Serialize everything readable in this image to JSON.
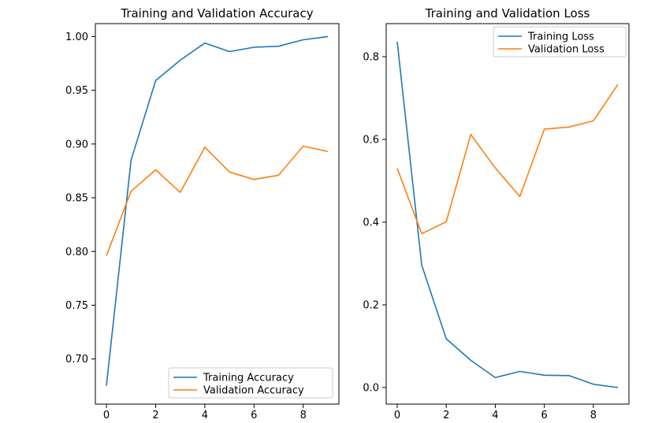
{
  "chart_data": [
    {
      "type": "line",
      "title": "Training and Validation Accuracy",
      "xlabel": "",
      "ylabel": "",
      "x": [
        0,
        1,
        2,
        3,
        4,
        5,
        6,
        7,
        8,
        9
      ],
      "xticks": [
        0,
        2,
        4,
        6,
        8
      ],
      "xlim": [
        -0.45,
        9.45
      ],
      "ylim": [
        0.658,
        1.012
      ],
      "yticks": [
        0.7,
        0.75,
        0.8,
        0.85,
        0.9,
        0.95,
        1.0
      ],
      "ytick_labels": [
        "0.70",
        "0.75",
        "0.80",
        "0.85",
        "0.90",
        "0.95",
        "1.00"
      ],
      "grid": false,
      "legend_position": "lower-right",
      "series": [
        {
          "name": "Training Accuracy",
          "color": "#1f77b4",
          "values": [
            0.675,
            0.885,
            0.959,
            0.978,
            0.994,
            0.986,
            0.99,
            0.991,
            0.997,
            1.0
          ]
        },
        {
          "name": "Validation Accuracy",
          "color": "#ff7f0e",
          "values": [
            0.796,
            0.856,
            0.876,
            0.855,
            0.897,
            0.874,
            0.867,
            0.871,
            0.898,
            0.893
          ]
        }
      ]
    },
    {
      "type": "line",
      "title": "Training and Validation Loss",
      "xlabel": "",
      "ylabel": "",
      "x": [
        0,
        1,
        2,
        3,
        4,
        5,
        6,
        7,
        8,
        9
      ],
      "xticks": [
        0,
        2,
        4,
        6,
        8
      ],
      "xlim": [
        -0.45,
        9.45
      ],
      "ylim": [
        -0.04,
        0.88
      ],
      "yticks": [
        0.0,
        0.2,
        0.4,
        0.6,
        0.8
      ],
      "ytick_labels": [
        "0.0",
        "0.2",
        "0.4",
        "0.6",
        "0.8"
      ],
      "grid": false,
      "legend_position": "upper-right",
      "series": [
        {
          "name": "Training Loss",
          "color": "#1f77b4",
          "values": [
            0.836,
            0.296,
            0.118,
            0.066,
            0.024,
            0.039,
            0.03,
            0.029,
            0.008,
            0.0
          ]
        },
        {
          "name": "Validation Loss",
          "color": "#ff7f0e",
          "values": [
            0.53,
            0.372,
            0.401,
            0.612,
            0.531,
            0.462,
            0.625,
            0.63,
            0.645,
            0.733
          ]
        }
      ]
    }
  ]
}
